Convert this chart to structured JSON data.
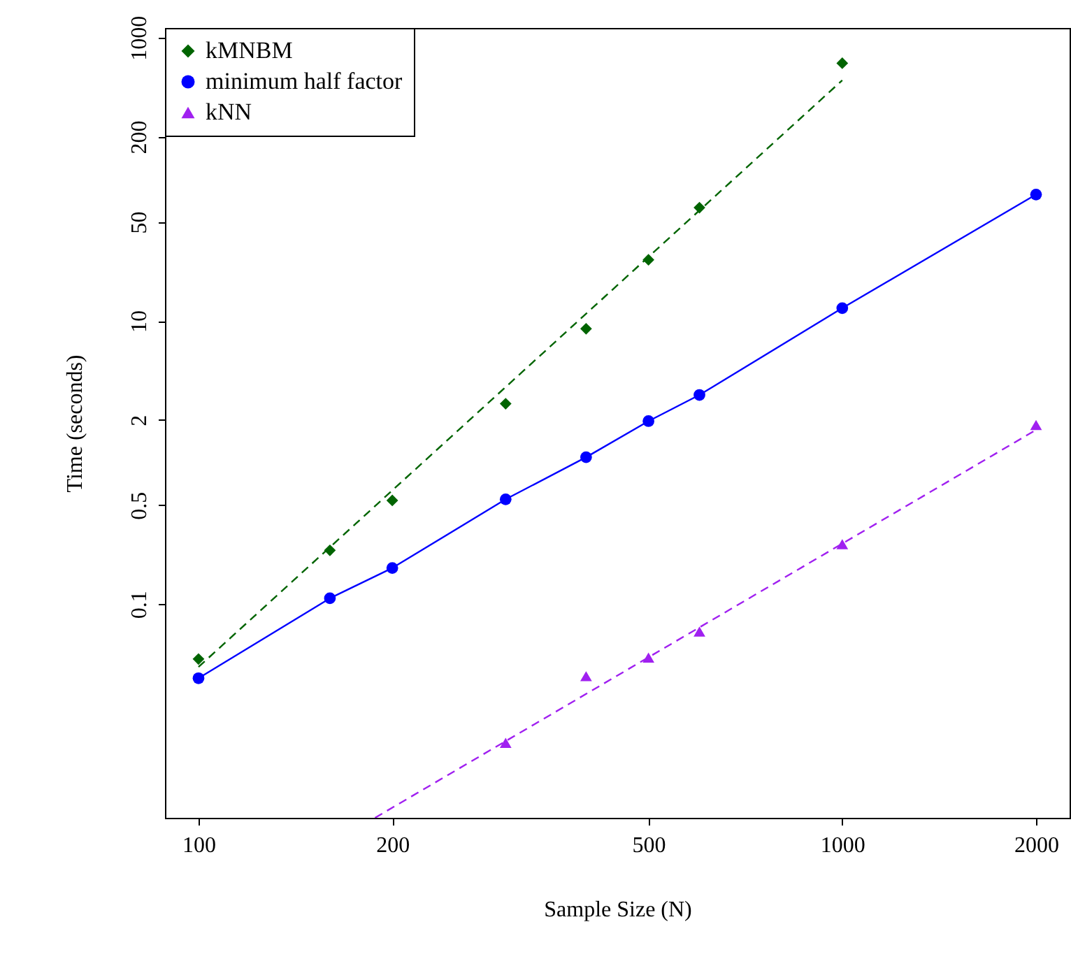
{
  "chart_data": {
    "type": "scatter",
    "xlabel": "Sample Size (N)",
    "ylabel": "Time (seconds)",
    "log": "xy",
    "grid": false,
    "legend": "top left",
    "xlim": [
      88.7,
      2255
    ],
    "ylim": [
      0.0031,
      1170
    ],
    "xticks": [
      100,
      200,
      500,
      1000,
      2000
    ],
    "yticks": [
      0.1,
      0.5,
      2,
      10,
      50,
      200,
      1000
    ],
    "series": [
      {
        "name": "kMNBM",
        "color": "#006400",
        "marker": "diamond",
        "x": [
          100,
          160,
          200,
          300,
          400,
          500,
          600,
          1000
        ],
        "values": [
          0.041,
          0.24,
          0.54,
          2.6,
          8.8,
          27,
          63,
          660
        ]
      },
      {
        "type": "line",
        "name": "minimum half factor",
        "color": "#0000ff",
        "marker": "circle",
        "line_style": "solid",
        "x": [
          100,
          160,
          200,
          300,
          400,
          500,
          600,
          1000,
          2000
        ],
        "values": [
          0.03,
          0.11,
          0.18,
          0.55,
          1.09,
          1.96,
          3.0,
          12.3,
          78
        ]
      },
      {
        "name": "kNN",
        "color": "#a020f0",
        "marker": "triangle",
        "x": [
          300,
          400,
          500,
          600,
          1000,
          2000
        ],
        "values": [
          0.0105,
          0.031,
          0.042,
          0.064,
          0.265,
          1.84
        ]
      },
      {
        "type": "line",
        "color": "#006400",
        "line_style": "dashed",
        "x": [
          100,
          1000
        ],
        "values": [
          0.036,
          500
        ]
      },
      {
        "type": "line",
        "color": "#a020f0",
        "line_style": "dashed",
        "x": [
          188,
          2000
        ],
        "values": [
          0.0031,
          1.7
        ]
      }
    ]
  }
}
